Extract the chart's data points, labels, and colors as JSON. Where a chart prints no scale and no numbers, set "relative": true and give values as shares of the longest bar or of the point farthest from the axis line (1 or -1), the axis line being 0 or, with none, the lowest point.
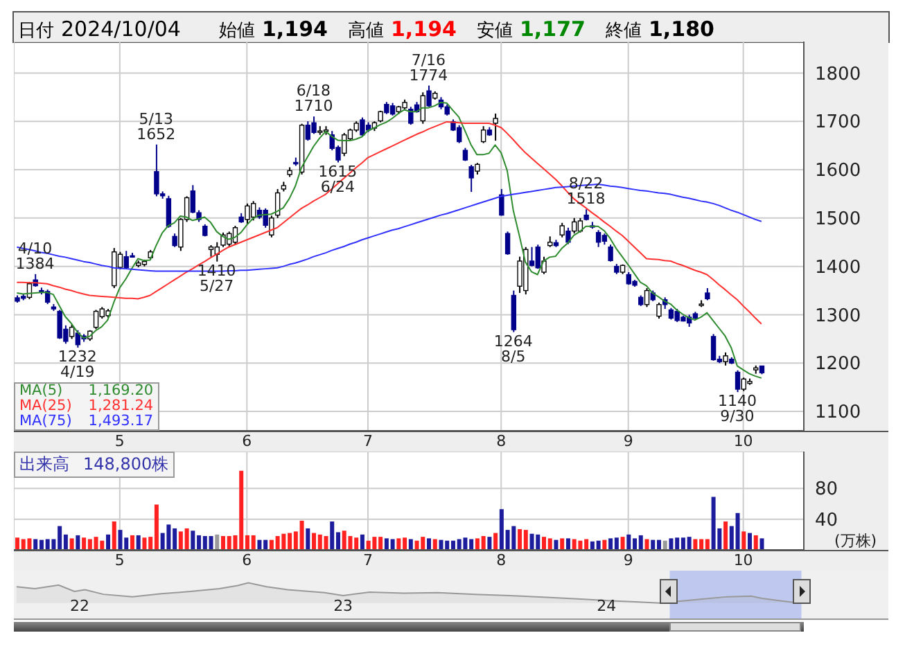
{
  "chart_data": [
    {
      "type": "other",
      "annotations": [
        "日付",
        "2024/10/04",
        "始値",
        "1,194",
        "高値",
        "1,194",
        "安値",
        "1,177",
        "終値",
        "1,180"
      ]
    },
    {
      "type": "candlestick",
      "categories": [
        null,
        null,
        null,
        null,
        null,
        null,
        null,
        null,
        null,
        null,
        null,
        null,
        null,
        null,
        null,
        null,
        null,
        "5",
        null,
        null,
        null,
        null,
        null,
        null,
        null,
        null,
        null,
        null,
        null,
        null,
        null,
        null,
        null,
        null,
        null,
        null,
        null,
        null,
        "6",
        null,
        null,
        null,
        null,
        null,
        null,
        null,
        null,
        null,
        null,
        null,
        null,
        null,
        null,
        null,
        null,
        null,
        null,
        null,
        "7",
        null,
        null,
        null,
        null,
        null,
        null,
        null,
        null,
        null,
        null,
        null,
        null,
        null,
        null,
        null,
        null,
        null,
        null,
        null,
        null,
        null,
        "8",
        null,
        null,
        null,
        null,
        null,
        null,
        null,
        null,
        null,
        null,
        null,
        null,
        null,
        null,
        null,
        null,
        null,
        null,
        null,
        null,
        "9",
        null,
        null,
        null,
        null,
        null,
        null,
        null,
        null,
        null,
        null,
        null,
        null,
        null,
        null,
        null,
        null,
        null,
        null,
        "10",
        null,
        null,
        null
      ],
      "ohlc": [
        [
          1335,
          1340,
          1325,
          1328
        ],
        [
          1338,
          1342,
          1330,
          1334
        ],
        [
          1336,
          1368,
          1332,
          1364
        ],
        [
          1372,
          1384,
          1358,
          1360
        ],
        [
          1350,
          1356,
          1342,
          1346
        ],
        [
          1348,
          1352,
          1322,
          1326
        ],
        [
          1316,
          1322,
          1308,
          1312
        ],
        [
          1307,
          1310,
          1250,
          1252
        ],
        [
          1270,
          1278,
          1240,
          1245
        ],
        [
          1255,
          1280,
          1250,
          1274
        ],
        [
          1262,
          1268,
          1232,
          1238
        ],
        [
          1256,
          1260,
          1244,
          1250
        ],
        [
          1250,
          1268,
          1246,
          1266
        ],
        [
          1274,
          1310,
          1270,
          1307
        ],
        [
          1296,
          1316,
          1292,
          1312
        ],
        [
          1298,
          1312,
          1294,
          1308
        ],
        [
          1360,
          1438,
          1355,
          1430
        ],
        [
          1398,
          1430,
          1394,
          1425
        ],
        [
          1420,
          1432,
          1395,
          1397
        ],
        [
          1422,
          1428,
          1418,
          1420
        ],
        [
          1402,
          1412,
          1398,
          1407
        ],
        [
          1404,
          1414,
          1400,
          1410
        ],
        [
          1418,
          1434,
          1414,
          1430
        ],
        [
          1596,
          1652,
          1545,
          1550
        ],
        [
          1550,
          1555,
          1540,
          1546
        ],
        [
          1540,
          1546,
          1480,
          1483
        ],
        [
          1462,
          1468,
          1440,
          1443
        ],
        [
          1440,
          1500,
          1432,
          1497
        ],
        [
          1497,
          1545,
          1492,
          1542
        ],
        [
          1556,
          1568,
          1510,
          1512
        ],
        [
          1511,
          1516,
          1492,
          1497
        ],
        [
          1483,
          1487,
          1462,
          1464
        ],
        [
          1435,
          1444,
          1420,
          1440
        ],
        [
          1425,
          1450,
          1410,
          1440
        ],
        [
          1444,
          1470,
          1440,
          1465
        ],
        [
          1446,
          1472,
          1440,
          1468
        ],
        [
          1450,
          1484,
          1445,
          1480
        ],
        [
          1502,
          1510,
          1490,
          1492
        ],
        [
          1497,
          1530,
          1488,
          1525
        ],
        [
          1502,
          1535,
          1495,
          1530
        ],
        [
          1516,
          1522,
          1498,
          1502
        ],
        [
          1516,
          1520,
          1480,
          1485
        ],
        [
          1465,
          1505,
          1460,
          1500
        ],
        [
          1506,
          1560,
          1500,
          1552
        ],
        [
          1560,
          1575,
          1555,
          1567
        ],
        [
          1590,
          1605,
          1585,
          1598
        ],
        [
          1615,
          1625,
          1608,
          1612
        ],
        [
          1595,
          1695,
          1590,
          1692
        ],
        [
          1692,
          1700,
          1660,
          1663
        ],
        [
          1697,
          1710,
          1674,
          1677
        ],
        [
          1678,
          1690,
          1672,
          1680
        ],
        [
          1680,
          1690,
          1672,
          1682
        ],
        [
          1672,
          1680,
          1640,
          1644
        ],
        [
          1646,
          1650,
          1615,
          1620
        ],
        [
          1634,
          1676,
          1628,
          1672
        ],
        [
          1664,
          1685,
          1660,
          1682
        ],
        [
          1682,
          1700,
          1678,
          1696
        ],
        [
          1703,
          1708,
          1670,
          1672
        ],
        [
          1692,
          1698,
          1678,
          1682
        ],
        [
          1686,
          1700,
          1680,
          1697
        ],
        [
          1701,
          1722,
          1698,
          1720
        ],
        [
          1735,
          1740,
          1715,
          1718
        ],
        [
          1732,
          1738,
          1712,
          1715
        ],
        [
          1720,
          1732,
          1715,
          1730
        ],
        [
          1728,
          1745,
          1725,
          1739
        ],
        [
          1725,
          1730,
          1693,
          1696
        ],
        [
          1734,
          1740,
          1718,
          1720
        ],
        [
          1701,
          1760,
          1695,
          1753
        ],
        [
          1763,
          1774,
          1730,
          1732
        ],
        [
          1748,
          1762,
          1745,
          1758
        ],
        [
          1744,
          1750,
          1725,
          1730
        ],
        [
          1730,
          1735,
          1712,
          1715
        ],
        [
          1699,
          1704,
          1680,
          1682
        ],
        [
          1687,
          1692,
          1655,
          1658
        ],
        [
          1640,
          1645,
          1618,
          1620
        ],
        [
          1606,
          1610,
          1554,
          1583
        ],
        [
          1597,
          1614,
          1590,
          1611
        ],
        [
          1658,
          1690,
          1655,
          1682
        ],
        [
          1682,
          1688,
          1670,
          1672
        ],
        [
          1696,
          1716,
          1660,
          1706
        ],
        [
          1548,
          1560,
          1505,
          1506
        ],
        [
          1468,
          1472,
          1424,
          1426
        ],
        [
          1340,
          1350,
          1264,
          1269
        ],
        [
          1359,
          1420,
          1345,
          1411
        ],
        [
          1350,
          1440,
          1342,
          1435
        ],
        [
          1411,
          1440,
          1400,
          1402
        ],
        [
          1440,
          1445,
          1395,
          1397
        ],
        [
          1388,
          1420,
          1384,
          1411
        ],
        [
          1443,
          1462,
          1440,
          1450
        ],
        [
          1449,
          1455,
          1440,
          1443
        ],
        [
          1465,
          1490,
          1460,
          1484
        ],
        [
          1473,
          1480,
          1446,
          1450
        ],
        [
          1473,
          1500,
          1468,
          1492
        ],
        [
          1473,
          1500,
          1470,
          1494
        ],
        [
          1506,
          1518,
          1495,
          1497
        ],
        [
          1484,
          1492,
          1478,
          1483
        ],
        [
          1470,
          1475,
          1440,
          1450
        ],
        [
          1464,
          1468,
          1445,
          1452
        ],
        [
          1440,
          1445,
          1410,
          1412
        ],
        [
          1400,
          1405,
          1384,
          1388
        ],
        [
          1388,
          1404,
          1384,
          1402
        ],
        [
          1383,
          1388,
          1362,
          1364
        ],
        [
          1369,
          1372,
          1358,
          1361
        ],
        [
          1336,
          1340,
          1318,
          1321
        ],
        [
          1321,
          1355,
          1316,
          1350
        ],
        [
          1345,
          1350,
          1328,
          1331
        ],
        [
          1297,
          1325,
          1292,
          1321
        ],
        [
          1331,
          1336,
          1312,
          1321
        ],
        [
          1310,
          1314,
          1290,
          1293
        ],
        [
          1307,
          1312,
          1285,
          1288
        ],
        [
          1295,
          1298,
          1286,
          1287
        ],
        [
          1295,
          1300,
          1275,
          1283
        ],
        [
          1302,
          1306,
          1290,
          1293
        ],
        [
          1320,
          1330,
          1316,
          1322
        ],
        [
          1345,
          1355,
          1330,
          1333
        ],
        [
          1255,
          1260,
          1205,
          1207
        ],
        [
          1208,
          1215,
          1200,
          1203
        ],
        [
          1203,
          1222,
          1195,
          1215
        ],
        [
          1208,
          1212,
          1198,
          1200
        ],
        [
          1181,
          1185,
          1140,
          1146
        ],
        [
          1146,
          1170,
          1142,
          1167
        ],
        [
          1158,
          1168,
          1155,
          1162
        ],
        [
          1186,
          1195,
          1178,
          1190
        ],
        [
          1194,
          1194,
          1177,
          1180
        ]
      ],
      "series": [
        {
          "name": "MA(5)",
          "type": "line",
          "color": "#2e8b2e",
          "values": [
            1345,
            1343,
            1344,
            1345,
            1346,
            1346,
            1342,
            1319,
            1296,
            1282,
            1264,
            1252,
            1255,
            1267,
            1275,
            1289,
            1325,
            1356,
            1374,
            1396,
            1416,
            1412,
            1413,
            1443,
            1469,
            1484,
            1490,
            1504,
            1502,
            1495,
            1498,
            1502,
            1491,
            1472,
            1462,
            1456,
            1460,
            1470,
            1486,
            1499,
            1506,
            1507,
            1508,
            1514,
            1521,
            1540,
            1566,
            1604,
            1626,
            1648,
            1665,
            1679,
            1669,
            1661,
            1660,
            1660,
            1663,
            1668,
            1681,
            1686,
            1693,
            1698,
            1706,
            1716,
            1724,
            1720,
            1720,
            1728,
            1728,
            1732,
            1739,
            1738,
            1723,
            1709,
            1681,
            1652,
            1631,
            1631,
            1634,
            1651,
            1635,
            1598,
            1516,
            1464,
            1409,
            1389,
            1383,
            1411,
            1419,
            1421,
            1437,
            1448,
            1464,
            1472,
            1483,
            1483,
            1483,
            1474,
            1458,
            1437,
            1420,
            1403,
            1385,
            1367,
            1360,
            1345,
            1337,
            1328,
            1322,
            1310,
            1301,
            1294,
            1289,
            1295,
            1304,
            1288,
            1272,
            1256,
            1232,
            1194,
            1186,
            1178,
            1173,
            1169
          ]
        },
        {
          "name": "MA(25)",
          "type": "line",
          "color": "#ff3030",
          "values": [
            1367,
            1367,
            1366,
            1366,
            1365,
            1364,
            1360,
            1357,
            1353,
            1350,
            1346,
            1343,
            1340,
            1339,
            1338,
            1337,
            1336,
            1335,
            1334,
            1334,
            1333,
            1336,
            1340,
            1348,
            1356,
            1364,
            1372,
            1380,
            1388,
            1395,
            1403,
            1410,
            1418,
            1425,
            1433,
            1440,
            1445,
            1450,
            1455,
            1460,
            1465,
            1470,
            1475,
            1480,
            1490,
            1500,
            1510,
            1520,
            1527,
            1535,
            1542,
            1549,
            1560,
            1571,
            1582,
            1593,
            1604,
            1614,
            1625,
            1631,
            1637,
            1643,
            1649,
            1655,
            1661,
            1667,
            1673,
            1678,
            1684,
            1689,
            1694,
            1699,
            1698,
            1697,
            1696,
            1696,
            1696,
            1696,
            1696,
            1692,
            1687,
            1675,
            1662,
            1648,
            1635,
            1624,
            1613,
            1602,
            1591,
            1580,
            1567,
            1553,
            1540,
            1530,
            1521,
            1511,
            1502,
            1492,
            1483,
            1473,
            1464,
            1452,
            1440,
            1428,
            1416,
            1415,
            1414,
            1412,
            1411,
            1406,
            1402,
            1397,
            1392,
            1388,
            1383,
            1373,
            1362,
            1352,
            1341,
            1331,
            1318,
            1306,
            1293,
            1281
          ]
        },
        {
          "name": "MA(75)",
          "type": "line",
          "color": "#3030ff",
          "values": [
            1440,
            1437,
            1435,
            1432,
            1429,
            1427,
            1424,
            1421,
            1419,
            1416,
            1413,
            1410,
            1408,
            1405,
            1402,
            1400,
            1397,
            1396,
            1395,
            1394,
            1393,
            1392,
            1391,
            1390,
            1390,
            1390,
            1390,
            1390,
            1390,
            1390,
            1390,
            1390,
            1390,
            1390,
            1390,
            1391,
            1391,
            1392,
            1392,
            1393,
            1394,
            1395,
            1396,
            1397,
            1400,
            1404,
            1407,
            1411,
            1415,
            1420,
            1424,
            1428,
            1433,
            1437,
            1441,
            1446,
            1450,
            1455,
            1459,
            1463,
            1467,
            1471,
            1475,
            1478,
            1482,
            1486,
            1490,
            1494,
            1498,
            1502,
            1506,
            1509,
            1513,
            1517,
            1521,
            1525,
            1529,
            1533,
            1537,
            1541,
            1545,
            1547,
            1549,
            1551,
            1553,
            1555,
            1557,
            1559,
            1561,
            1563,
            1564,
            1565,
            1566,
            1567,
            1568,
            1569,
            1570,
            1568,
            1566,
            1565,
            1563,
            1561,
            1559,
            1557,
            1556,
            1554,
            1552,
            1551,
            1549,
            1546,
            1543,
            1541,
            1538,
            1535,
            1533,
            1530,
            1526,
            1521,
            1516,
            1512,
            1507,
            1502,
            1497,
            1493
          ]
        }
      ],
      "ylim": [
        1060,
        1865
      ],
      "yticks": [
        1100,
        1200,
        1300,
        1400,
        1500,
        1600,
        1700,
        1800
      ],
      "grid": true,
      "legend": "bottom left",
      "annotations": [
        {
          "text": "4/10\n1384",
          "y": 1384
        },
        {
          "text": "1232\n4/19",
          "y": 1232
        },
        {
          "text": "5/13\n1652",
          "y": 1652
        },
        {
          "text": "1410\n5/27",
          "y": 1410
        },
        {
          "text": "6/18\n1710",
          "y": 1710
        },
        {
          "text": "1615\n6/24",
          "y": 1615
        },
        {
          "text": "7/16\n1774",
          "y": 1774
        },
        {
          "text": "1264\n8/5",
          "y": 1264
        },
        {
          "text": "8/22\n1518",
          "y": 1518
        },
        {
          "text": "1140\n9/30",
          "y": 1140
        },
        "1,169.20",
        "1,281.24",
        "1,493.17"
      ]
    },
    {
      "type": "bar",
      "title": "出来高",
      "annotations": [
        "148,800株"
      ],
      "ylabel": "(万株)",
      "categories": [
        null,
        null,
        null,
        null,
        null,
        null,
        null,
        null,
        null,
        null,
        null,
        null,
        null,
        null,
        null,
        null,
        null,
        "5",
        null,
        null,
        null,
        null,
        null,
        null,
        null,
        null,
        null,
        null,
        null,
        null,
        null,
        null,
        null,
        null,
        null,
        null,
        null,
        null,
        "6",
        null,
        null,
        null,
        null,
        null,
        null,
        null,
        null,
        null,
        null,
        null,
        null,
        null,
        null,
        null,
        null,
        null,
        null,
        null,
        "7",
        null,
        null,
        null,
        null,
        null,
        null,
        null,
        null,
        null,
        null,
        null,
        null,
        null,
        null,
        null,
        null,
        null,
        null,
        null,
        null,
        null,
        "8",
        null,
        null,
        null,
        null,
        null,
        null,
        null,
        null,
        null,
        null,
        null,
        null,
        null,
        null,
        null,
        null,
        null,
        null,
        null,
        null,
        "9",
        null,
        null,
        null,
        null,
        null,
        null,
        null,
        null,
        null,
        null,
        null,
        null,
        null,
        null,
        null,
        null,
        null,
        null,
        "10",
        null,
        null,
        null
      ],
      "values": [
        16,
        14,
        15,
        14,
        13,
        14,
        14,
        31,
        20,
        15,
        19,
        16,
        14,
        17,
        12,
        20,
        37,
        26,
        16,
        19,
        19,
        16,
        17,
        59,
        22,
        33,
        28,
        24,
        28,
        25,
        19,
        18,
        18,
        20,
        18,
        18,
        19,
        103,
        19,
        19,
        13,
        13,
        13,
        18,
        21,
        22,
        24,
        38,
        28,
        22,
        20,
        18,
        37,
        23,
        25,
        18,
        16,
        20,
        12,
        17,
        17,
        15,
        14,
        15,
        16,
        14,
        12,
        17,
        15,
        14,
        13,
        12,
        12,
        14,
        16,
        14,
        15,
        18,
        17,
        22,
        53,
        26,
        31,
        27,
        26,
        21,
        20,
        17,
        15,
        13,
        15,
        15,
        14,
        12,
        14,
        11,
        12,
        13,
        15,
        16,
        17,
        20,
        15,
        19,
        14,
        13,
        13,
        12,
        15,
        16,
        16,
        17,
        14,
        14,
        14,
        69,
        28,
        37,
        31,
        48,
        24,
        22,
        19,
        15
      ],
      "colors": [
        "#ff2020",
        "#ff2020",
        "#ff2020",
        "#1c1c9c",
        "#1c1c9c",
        "#1c1c9c",
        "#1c1c9c",
        "#1c1c9c",
        "#1c1c9c",
        "#ff2020",
        "#1c1c9c",
        "#ff2020",
        "#ff2020",
        "#ff2020",
        "#ff2020",
        "#1c1c9c",
        "#ff2020",
        "#1c1c9c",
        "#1c1c9c",
        "#ff2020",
        "#1c1c9c",
        "#ff2020",
        "#ff2020",
        "#ff2020",
        "#1c1c9c",
        "#1c1c9c",
        "#1c1c9c",
        "#ff2020",
        "#ff2020",
        "#1c1c9c",
        "#1c1c9c",
        "#1c1c9c",
        "#1c1c9c",
        "#999999",
        "#ff2020",
        "#ff2020",
        "#ff2020",
        "#ff2020",
        "#ff2020",
        "#ff2020",
        "#1c1c9c",
        "#1c1c9c",
        "#ff2020",
        "#ff2020",
        "#ff2020",
        "#ff2020",
        "#ff2020",
        "#ff2020",
        "#1c1c9c",
        "#ff2020",
        "#ff2020",
        "#ff2020",
        "#1c1c9c",
        "#1c1c9c",
        "#ff2020",
        "#ff2020",
        "#ff2020",
        "#1c1c9c",
        "#ff2020",
        "#ff2020",
        "#ff2020",
        "#1c1c9c",
        "#1c1c9c",
        "#ff2020",
        "#ff2020",
        "#1c1c9c",
        "#ff2020",
        "#ff2020",
        "#1c1c9c",
        "#ff2020",
        "#1c1c9c",
        "#1c1c9c",
        "#1c1c9c",
        "#1c1c9c",
        "#1c1c9c",
        "#1c1c9c",
        "#ff2020",
        "#ff2020",
        "#1c1c9c",
        "#ff2020",
        "#1c1c9c",
        "#1c1c9c",
        "#1c1c9c",
        "#ff2020",
        "#ff2020",
        "#1c1c9c",
        "#1c1c9c",
        "#ff2020",
        "#ff2020",
        "#1c1c9c",
        "#ff2020",
        "#1c1c9c",
        "#ff2020",
        "#ff2020",
        "#ff2020",
        "#1c1c9c",
        "#1c1c9c",
        "#ff2020",
        "#1c1c9c",
        "#1c1c9c",
        "#ff2020",
        "#1c1c9c",
        "#1c1c9c",
        "#1c1c9c",
        "#ff2020",
        "#1c1c9c",
        "#1c1c9c",
        "#999999",
        "#1c1c9c",
        "#1c1c9c",
        "#1c1c9c",
        "#1c1c9c",
        "#ff2020",
        "#ff2020",
        "#ff2020",
        "#1c1c9c",
        "#1c1c9c",
        "#ff2020",
        "#1c1c9c",
        "#1c1c9c",
        "#ff2020",
        "#1c1c9c",
        "#ff2020",
        "#1c1c9c"
      ],
      "ylim": [
        0,
        128
      ],
      "yticks": [
        40,
        80
      ],
      "grid": true
    },
    {
      "type": "area",
      "relative": true,
      "color": "#999999",
      "x": [
        2021.76,
        2021.83,
        2021.92,
        2021.98,
        2022.02,
        2022.09,
        2022.2,
        2022.31,
        2022.42,
        2022.53,
        2022.6,
        2022.64,
        2022.71,
        2022.79,
        2022.93,
        2023.0,
        2023.1,
        2023.23,
        2023.36,
        2023.5,
        2023.63,
        2023.76,
        2023.89,
        2024.02,
        2024.11,
        2024.2,
        2024.28,
        2024.37,
        2024.46,
        2024.55,
        2024.59,
        2024.66,
        2024.71
      ],
      "values": [
        0.8,
        0.71,
        0.89,
        0.57,
        0.66,
        0.43,
        0.31,
        0.46,
        0.57,
        0.71,
        0.86,
        1,
        0.8,
        0.66,
        0.51,
        0.37,
        0.54,
        0.49,
        0.51,
        0.43,
        0.37,
        0.29,
        0.2,
        0.11,
        0.06,
        0,
        0.09,
        0.2,
        0.31,
        0.34,
        0.23,
        0.11,
        0.03
      ],
      "xlim": [
        2021.75,
        2025.07
      ],
      "xticks": [
        {
          "value": 2022,
          "label": "22"
        },
        {
          "value": 2023,
          "label": "23"
        },
        {
          "value": 2024,
          "label": "24"
        }
      ],
      "bands": [
        {
          "axis": "x",
          "from": 2024.24,
          "to": 2024.74,
          "color": "#aab8f0"
        }
      ]
    }
  ]
}
